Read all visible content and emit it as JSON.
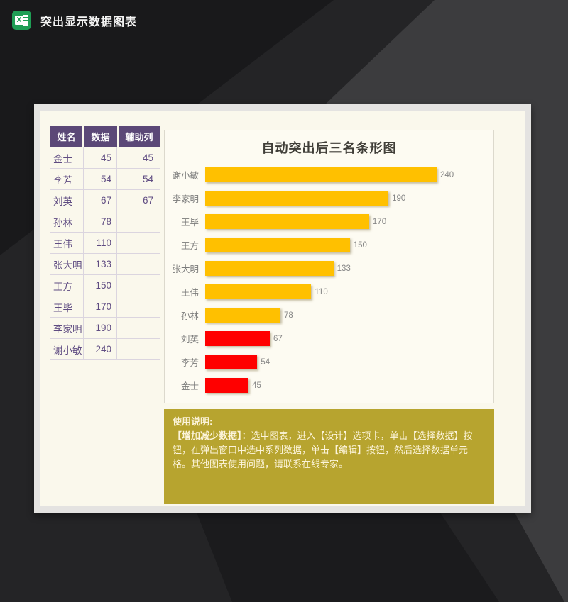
{
  "header": {
    "icon": "excel-icon",
    "icon_letter": "X",
    "title": "突出显示数据图表"
  },
  "colors": {
    "table_header_purple": "#5b4877",
    "table_text_purple": "#5f4c82",
    "bar_yellow": "#ffc000",
    "bar_red": "#ff0000",
    "note_olive": "#b7a42f",
    "panel_cream": "#faf8ec",
    "background_dark": "#232325"
  },
  "table": {
    "columns": [
      "姓名",
      "数据",
      "辅助列"
    ],
    "rows": [
      {
        "name": "金士",
        "value": "45",
        "aux": "45"
      },
      {
        "name": "李芳",
        "value": "54",
        "aux": "54"
      },
      {
        "name": "刘英",
        "value": "67",
        "aux": "67"
      },
      {
        "name": "孙林",
        "value": "78",
        "aux": ""
      },
      {
        "name": "王伟",
        "value": "110",
        "aux": ""
      },
      {
        "name": "张大明",
        "value": "133",
        "aux": ""
      },
      {
        "name": "王方",
        "value": "150",
        "aux": ""
      },
      {
        "name": "王毕",
        "value": "170",
        "aux": ""
      },
      {
        "name": "李家明",
        "value": "190",
        "aux": ""
      },
      {
        "name": "谢小敏",
        "value": "240",
        "aux": ""
      }
    ]
  },
  "chart_data": {
    "type": "bar",
    "orientation": "horizontal",
    "title": "自动突出后三名条形图",
    "categories": [
      "谢小敏",
      "李家明",
      "王毕",
      "王方",
      "张大明",
      "王伟",
      "孙林",
      "刘英",
      "李芳",
      "金士"
    ],
    "values": [
      240,
      190,
      170,
      150,
      133,
      110,
      78,
      67,
      54,
      45
    ],
    "colors": [
      "#ffc000",
      "#ffc000",
      "#ffc000",
      "#ffc000",
      "#ffc000",
      "#ffc000",
      "#ffc000",
      "#ff0000",
      "#ff0000",
      "#ff0000"
    ],
    "axis_max": 240,
    "data_labels": true,
    "grid": false,
    "legend": "none",
    "highlight_rule": "bottom three values shown in red"
  },
  "usage": {
    "heading": "使用说明:",
    "bold_lead": "【增加减少数据】",
    "body": "：选中图表，进入【设计】选项卡，单击【选择数据】按钮，在弹出窗口中选中系列数据，单击【编辑】按钮，然后选择数据单元格。其他图表使用问题，请联系在线专家。"
  }
}
